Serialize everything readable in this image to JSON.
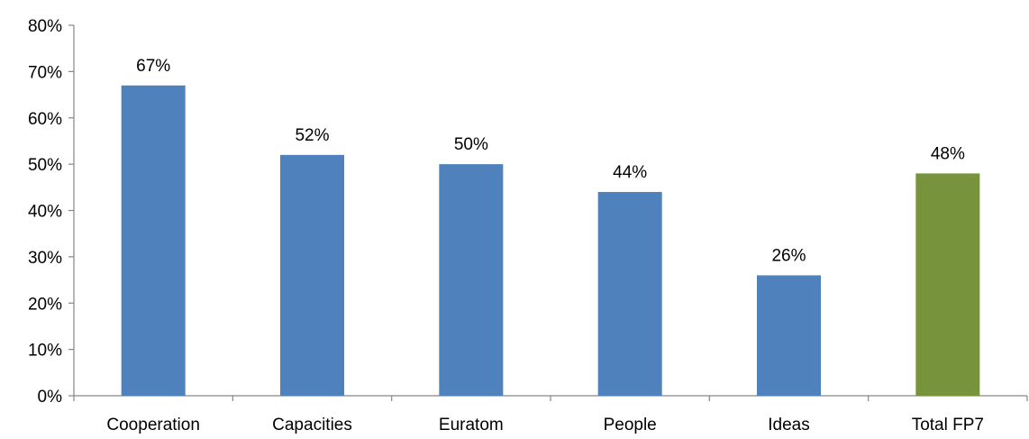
{
  "chart_data": {
    "type": "bar",
    "categories": [
      "Cooperation",
      "Capacities",
      "Euratom",
      "People",
      "Ideas",
      "Total FP7"
    ],
    "values": [
      67,
      52,
      50,
      44,
      26,
      48
    ],
    "data_labels": [
      "67%",
      "52%",
      "50%",
      "44%",
      "26%",
      "48%"
    ],
    "bar_colors": [
      "#4f81bd",
      "#4f81bd",
      "#4f81bd",
      "#4f81bd",
      "#4f81bd",
      "#77933c"
    ],
    "title": "",
    "xlabel": "",
    "ylabel": "",
    "ylim": [
      0,
      80
    ],
    "yticks": [
      0,
      10,
      20,
      30,
      40,
      50,
      60,
      70,
      80
    ],
    "ytick_labels": [
      "0%",
      "10%",
      "20%",
      "30%",
      "40%",
      "50%",
      "60%",
      "70%",
      "80%"
    ],
    "grid": false,
    "legend": "none"
  }
}
